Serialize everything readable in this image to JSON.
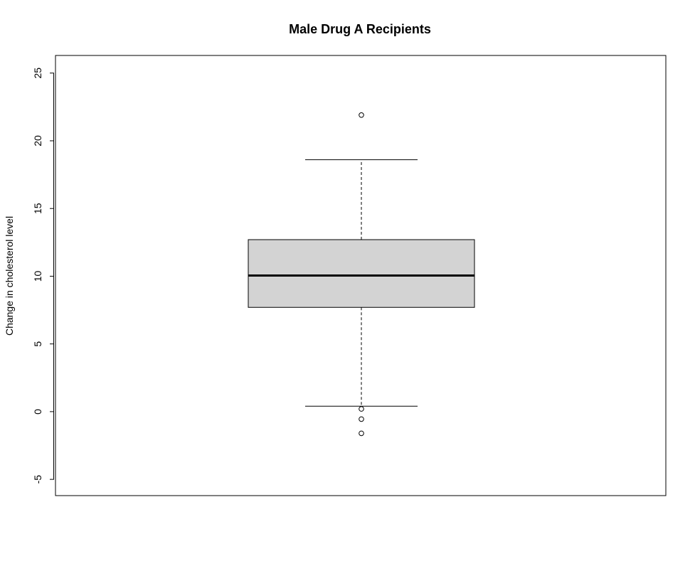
{
  "chart_data": {
    "type": "boxplot",
    "title": "Male Drug A Recipients",
    "xlabel": "",
    "ylabel": "Change in cholesterol level",
    "ylim": [
      -6.2,
      26.3
    ],
    "yticks": [
      -5,
      0,
      5,
      10,
      15,
      20,
      25
    ],
    "grid": false,
    "box": {
      "whisker_low": 0.4,
      "q1": 7.7,
      "median": 10.05,
      "q3": 12.7,
      "whisker_high": 18.6,
      "outliers": [
        21.9,
        0.2,
        -0.55,
        -1.6
      ]
    },
    "colors": {
      "box_fill": "#d3d3d3",
      "stroke": "#000000",
      "background": "#ffffff"
    }
  }
}
